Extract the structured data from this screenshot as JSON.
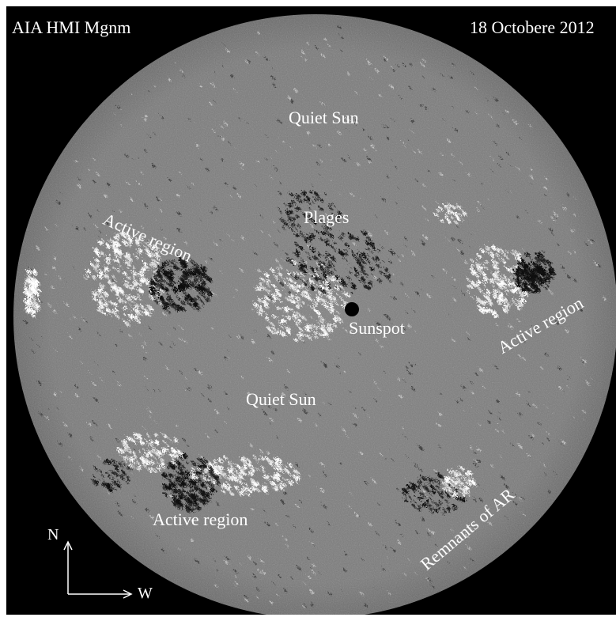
{
  "figure": {
    "instrument": "AIA HMI Mgnm",
    "date": "18 Octobere 2012"
  },
  "annotations": {
    "quiet_sun_top": "Quiet Sun",
    "plages": "Plages",
    "active_region_left": "Active region",
    "active_region_right": "Active region",
    "sunspot": "Sunspot",
    "quiet_sun_middle": "Quiet Sun",
    "active_region_bottom": "Active region",
    "remnants": "Remnants of AR"
  },
  "compass": {
    "north": "N",
    "west": "W"
  },
  "colors": {
    "background": "#000000",
    "disk": "#7d7d7d",
    "positive_polarity": "#ffffff",
    "negative_polarity": "#0a0a0a",
    "text": "#ffffff"
  }
}
